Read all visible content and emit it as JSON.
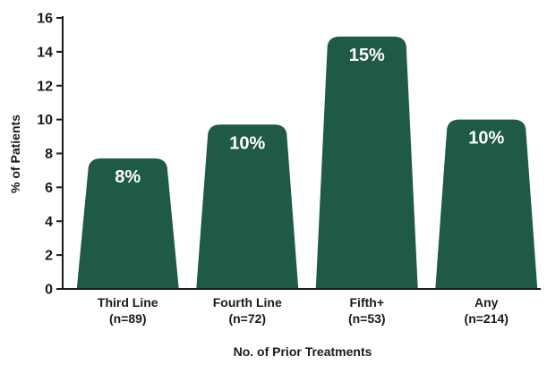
{
  "chart_data": {
    "type": "bar",
    "categories": [
      "Third Line",
      "Fourth Line",
      "Fifth+",
      "Any"
    ],
    "category_sublabels": [
      "(n=89)",
      "(n=72)",
      "(n=53)",
      "(n=214)"
    ],
    "values": [
      7.7,
      9.7,
      14.9,
      10.0
    ],
    "data_labels": [
      "8%",
      "10%",
      "15%",
      "10%"
    ],
    "xlabel": "No. of Prior Treatments",
    "ylabel": "% of Patients",
    "ylim": [
      0,
      16
    ],
    "yticks": [
      0,
      2,
      4,
      6,
      8,
      10,
      12,
      14,
      16
    ],
    "grid": false,
    "bar_color": "#1e5a45",
    "label_color": "#ffffff"
  }
}
